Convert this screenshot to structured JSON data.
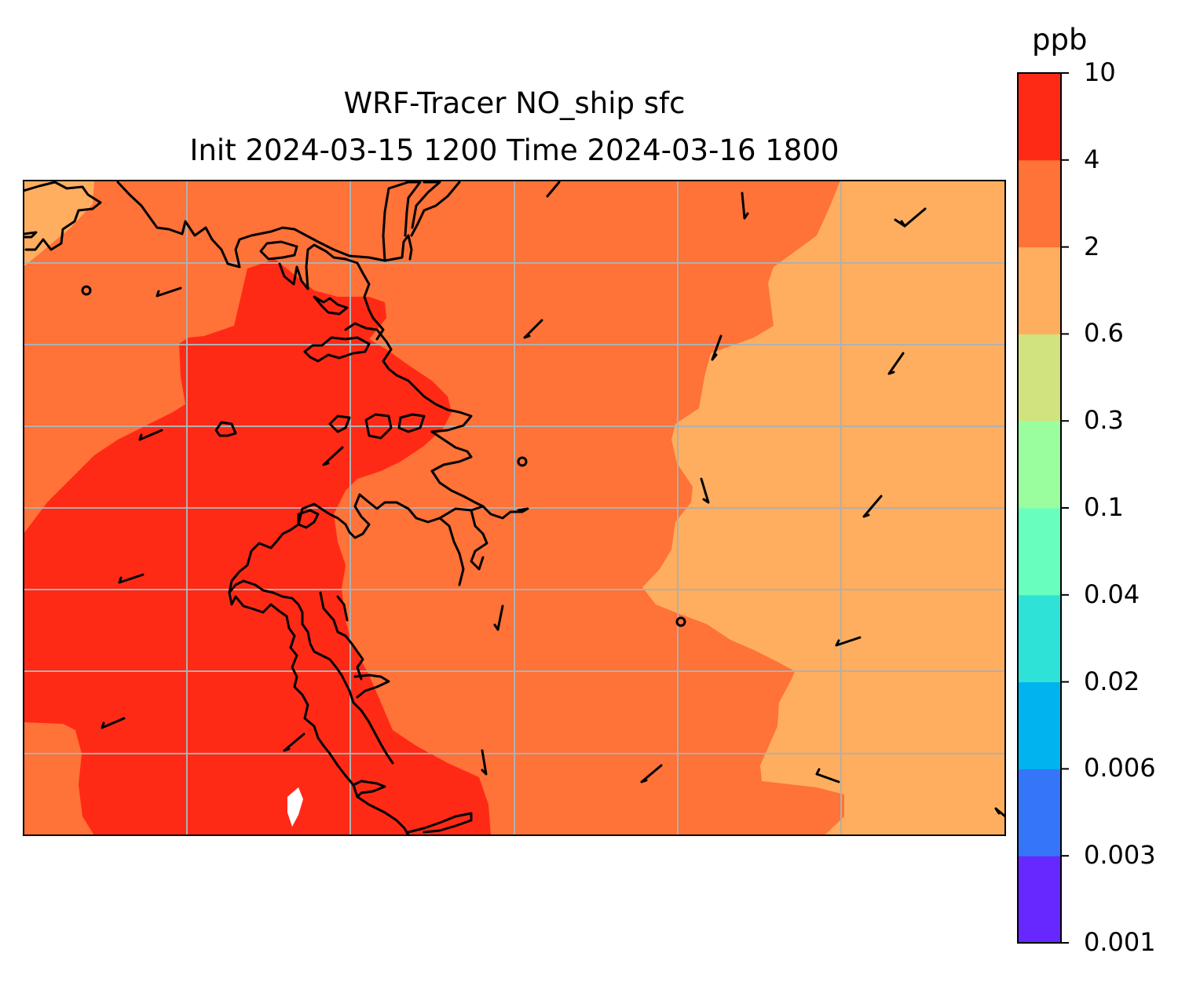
{
  "title": {
    "line1": "WRF-Tracer NO_ship sfc",
    "line2": "Init 2024-03-15 1200 Time 2024-03-16 1800"
  },
  "map": {
    "variable": "NO_ship",
    "level": "sfc",
    "units": "ppb",
    "fill_colors": {
      "4-10": "#FF2A16",
      "2-4": "#FF7238",
      "0.6-2": "#FFAE5F",
      "white_gap": "#FFFFFF"
    },
    "coastline_color": "#000000",
    "gridline_color": "#B0B0B0",
    "wind_barb_color": "#000000",
    "wind_barb_count": 23
  },
  "colorbar": {
    "label": "ppb",
    "levels": [
      "0.001",
      "0.003",
      "0.006",
      "0.02",
      "0.04",
      "0.1",
      "0.3",
      "0.6",
      "2",
      "4",
      "10"
    ],
    "colors": [
      "#6628FE",
      "#3476F7",
      "#00B4EF",
      "#2FE2D8",
      "#68FEBE",
      "#9AFE9F",
      "#D0E37E",
      "#FFAE5F",
      "#FF7238",
      "#FF2A16"
    ]
  }
}
